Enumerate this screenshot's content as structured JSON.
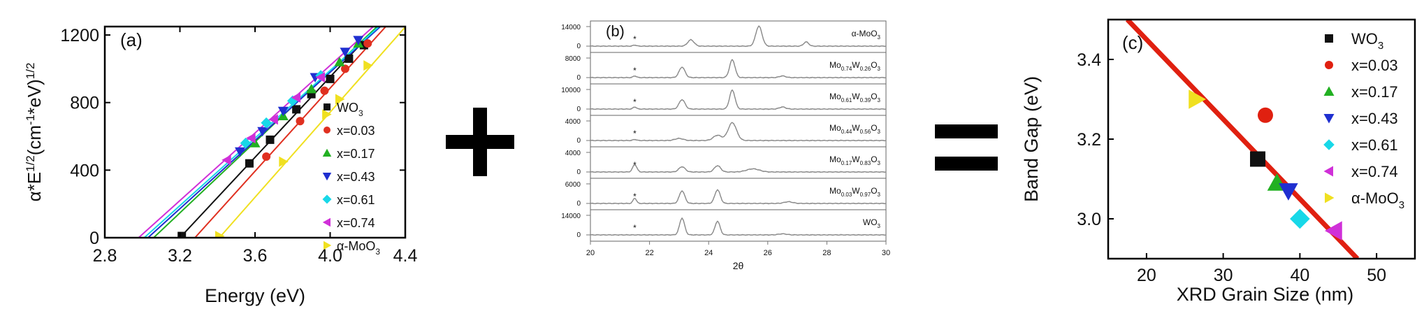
{
  "chart_data": [
    {
      "panel": "(a)",
      "type": "scatter",
      "xlabel": "Energy (eV)",
      "ylabel": "α*E^1/2(cm^-1*eV)^1/2",
      "xlim": [
        2.8,
        4.4
      ],
      "ylim": [
        0,
        1250
      ],
      "xticks": [
        "2.8",
        "3.2",
        "3.6",
        "4.0",
        "4.4"
      ],
      "yticks": [
        "0",
        "400",
        "800",
        "1200"
      ],
      "legend_position": "bottom-right",
      "series": [
        {
          "name": "WO3",
          "label_main": "WO",
          "label_sub": "3",
          "marker": "square",
          "color": "#111111",
          "fit_x0": 3.2,
          "fit_slope": 1190,
          "points": [
            [
              3.21,
              10
            ],
            [
              3.57,
              440
            ],
            [
              3.68,
              580
            ],
            [
              3.82,
              760
            ],
            [
              3.9,
              850
            ],
            [
              4.0,
              940
            ],
            [
              4.1,
              1060
            ],
            [
              4.18,
              1140
            ]
          ]
        },
        {
          "name": "x=0.03",
          "marker": "circle",
          "color": "#e03020",
          "fit_x0": 3.28,
          "fit_slope": 1230,
          "points": [
            [
              3.66,
              480
            ],
            [
              3.84,
              690
            ],
            [
              3.97,
              870
            ],
            [
              4.08,
              1000
            ],
            [
              4.2,
              1150
            ]
          ]
        },
        {
          "name": "x=0.17",
          "marker": "triangle-up",
          "color": "#22b022",
          "fit_x0": 3.06,
          "fit_slope": 1050,
          "points": [
            [
              3.6,
              560
            ],
            [
              3.75,
              720
            ],
            [
              3.9,
              880
            ],
            [
              4.05,
              1040
            ],
            [
              4.15,
              1150
            ]
          ]
        },
        {
          "name": "x=0.43",
          "marker": "triangle-down",
          "color": "#1f2fd0",
          "fit_x0": 3.03,
          "fit_slope": 1010,
          "points": [
            [
              3.52,
              510
            ],
            [
              3.64,
              630
            ],
            [
              3.75,
              750
            ],
            [
              3.92,
              950
            ],
            [
              4.08,
              1100
            ],
            [
              4.15,
              1170
            ]
          ]
        },
        {
          "name": "x=0.61",
          "marker": "diamond",
          "color": "#18d8e8",
          "fit_x0": 3.01,
          "fit_slope": 1000,
          "points": [
            [
              3.55,
              560
            ],
            [
              3.66,
              680
            ],
            [
              3.8,
              810
            ],
            [
              3.95,
              960
            ]
          ]
        },
        {
          "name": "x=0.74",
          "marker": "triangle-left",
          "color": "#d030d8",
          "fit_x0": 2.98,
          "fit_slope": 1000,
          "points": [
            [
              3.45,
              460
            ],
            [
              3.58,
              590
            ],
            [
              3.7,
              700
            ],
            [
              3.82,
              830
            ],
            [
              3.95,
              950
            ]
          ]
        },
        {
          "name": "α-MoO3",
          "label_main": "α-MoO",
          "label_sub": "3",
          "marker": "triangle-right",
          "color": "#f0e020",
          "fit_x0": 3.41,
          "fit_slope": 1260,
          "points": [
            [
              3.41,
              10
            ],
            [
              3.75,
              450
            ],
            [
              3.98,
              730
            ],
            [
              4.05,
              820
            ],
            [
              4.2,
              1020
            ]
          ]
        }
      ]
    },
    {
      "panel": "(b)",
      "type": "line",
      "xlabel": "2θ",
      "xlim": [
        20,
        30
      ],
      "xticks": [
        "20",
        "22",
        "24",
        "26",
        "28",
        "30"
      ],
      "star": "*",
      "traces": [
        {
          "label": "α-MoO3",
          "label_parts": [
            [
              "α-MoO",
              ""
            ],
            [
              "3",
              "sub"
            ]
          ],
          "ytick_top": "14000",
          "ytick_zero": "0",
          "peaks": [
            [
              21.5,
              0.05,
              0.08
            ],
            [
              23.4,
              0.3,
              0.15
            ],
            [
              25.7,
              0.95,
              0.15
            ],
            [
              27.3,
              0.2,
              0.12
            ]
          ]
        },
        {
          "label": "Mo0.74W0.26O3",
          "label_parts": [
            [
              "Mo",
              ""
            ],
            [
              "0.74",
              "sub"
            ],
            [
              "W",
              ""
            ],
            [
              "0.26",
              "sub"
            ],
            [
              "O",
              ""
            ],
            [
              "3",
              "sub"
            ]
          ],
          "ytick_top": "8000",
          "ytick_zero": "0",
          "peaks": [
            [
              21.5,
              0.08,
              0.08
            ],
            [
              23.1,
              0.5,
              0.14
            ],
            [
              24.8,
              0.85,
              0.13
            ],
            [
              26.5,
              0.08,
              0.15
            ]
          ]
        },
        {
          "label": "Mo0.61W0.39O3",
          "label_parts": [
            [
              "Mo",
              ""
            ],
            [
              "0.61",
              "sub"
            ],
            [
              "W",
              ""
            ],
            [
              "0.39",
              "sub"
            ],
            [
              "O",
              ""
            ],
            [
              "3",
              "sub"
            ]
          ],
          "ytick_top": "10000",
          "ytick_zero": "0",
          "peaks": [
            [
              21.5,
              0.1,
              0.08
            ],
            [
              23.1,
              0.45,
              0.14
            ],
            [
              24.8,
              0.9,
              0.13
            ],
            [
              26.5,
              0.1,
              0.15
            ]
          ]
        },
        {
          "label": "Mo0.44W0.56O3",
          "label_parts": [
            [
              "Mo",
              ""
            ],
            [
              "0.44",
              "sub"
            ],
            [
              "W",
              ""
            ],
            [
              "0.56",
              "sub"
            ],
            [
              "O",
              ""
            ],
            [
              "3",
              "sub"
            ]
          ],
          "ytick_top": "4000",
          "ytick_zero": "0",
          "peaks": [
            [
              21.5,
              0.05,
              0.08
            ],
            [
              23.0,
              0.1,
              0.2
            ],
            [
              24.3,
              0.25,
              0.2
            ],
            [
              24.8,
              0.85,
              0.2
            ]
          ]
        },
        {
          "label": "Mo0.17W0.83O3",
          "label_parts": [
            [
              "Mo",
              ""
            ],
            [
              "0.17",
              "sub"
            ],
            [
              "W",
              ""
            ],
            [
              "0.83",
              "sub"
            ],
            [
              "O",
              ""
            ],
            [
              "3",
              "sub"
            ]
          ],
          "ytick_top": "4000",
          "ytick_zero": "0",
          "peaks": [
            [
              21.5,
              0.35,
              0.1
            ],
            [
              23.1,
              0.25,
              0.15
            ],
            [
              24.3,
              0.3,
              0.15
            ],
            [
              25.5,
              0.15,
              0.3
            ]
          ]
        },
        {
          "label": "Mo0.03W0.97O3",
          "label_parts": [
            [
              "Mo",
              ""
            ],
            [
              "0.03",
              "sub"
            ],
            [
              "W",
              ""
            ],
            [
              "0.97",
              "sub"
            ],
            [
              "O",
              ""
            ],
            [
              "3",
              "sub"
            ]
          ],
          "ytick_top": "6000",
          "ytick_zero": "0",
          "peaks": [
            [
              21.5,
              0.25,
              0.08
            ],
            [
              23.1,
              0.6,
              0.13
            ],
            [
              24.3,
              0.65,
              0.13
            ],
            [
              26.7,
              0.08,
              0.2
            ]
          ]
        },
        {
          "label": "WO3",
          "label_parts": [
            [
              "WO",
              ""
            ],
            [
              "3",
              "sub"
            ]
          ],
          "ytick_top": "14000",
          "ytick_zero": "0",
          "peaks": [
            [
              23.1,
              0.8,
              0.12
            ],
            [
              24.3,
              0.65,
              0.12
            ],
            [
              26.5,
              0.05,
              0.2
            ]
          ]
        }
      ]
    },
    {
      "panel": "(c)",
      "type": "scatter",
      "xlabel": "XRD Grain Size (nm)",
      "ylabel": "Band Gap (eV)",
      "xlim": [
        15,
        55
      ],
      "ylim": [
        2.9,
        3.5
      ],
      "xticks": [
        "20",
        "30",
        "40",
        "50"
      ],
      "yticks": [
        "3.0",
        "3.2",
        "3.4"
      ],
      "legend_position": "top-right",
      "fit_line": {
        "color": "#e02010",
        "x": [
          17.5,
          47.5
        ],
        "y": [
          3.5,
          2.9
        ]
      },
      "points": [
        {
          "name": "WO3",
          "label_main": "WO",
          "label_sub": "3",
          "marker": "square",
          "color": "#111111",
          "x": 34.5,
          "y": 3.15
        },
        {
          "name": "x=0.03",
          "marker": "circle",
          "color": "#e02010",
          "x": 35.5,
          "y": 3.26
        },
        {
          "name": "x=0.17",
          "marker": "triangle-up",
          "color": "#22b022",
          "x": 37.0,
          "y": 3.09
        },
        {
          "name": "x=0.43",
          "marker": "triangle-down",
          "color": "#1f2fd0",
          "x": 38.5,
          "y": 3.07
        },
        {
          "name": "x=0.61",
          "marker": "diamond",
          "color": "#18d8e8",
          "x": 40.0,
          "y": 3.0
        },
        {
          "name": "x=0.74",
          "marker": "triangle-left",
          "color": "#d030d8",
          "x": 44.5,
          "y": 2.97
        },
        {
          "name": "α-MoO3",
          "label_main": "α-MoO",
          "label_sub": "3",
          "marker": "triangle-right",
          "color": "#f0e020",
          "x": 26.5,
          "y": 3.3
        }
      ]
    }
  ],
  "operators": {
    "plus": "+",
    "equals": "="
  }
}
